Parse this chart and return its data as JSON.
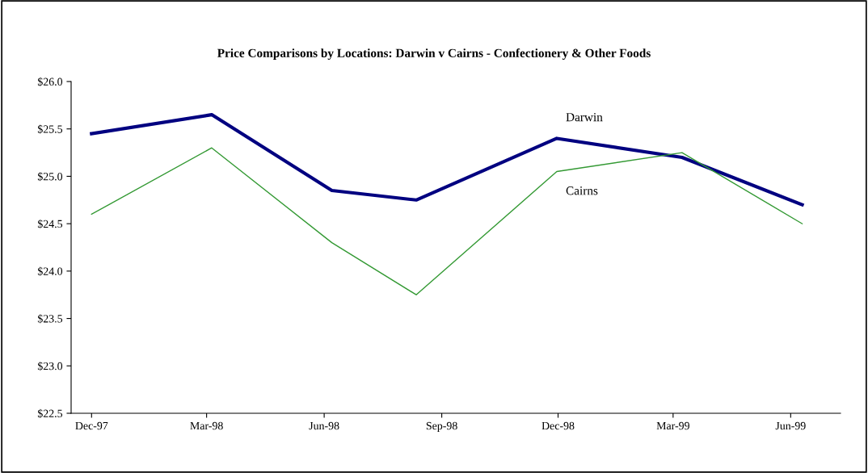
{
  "chart_data": {
    "type": "line",
    "title": "Price Comparisons by Locations: Darwin v Cairns - Confectionery & Other Foods",
    "x": [
      "1997-12-01",
      "1998-03-05",
      "1998-06-07",
      "1998-08-12",
      "1998-11-30",
      "1999-03-08",
      "1999-06-10"
    ],
    "series": [
      {
        "name": "Darwin",
        "color": "#000080",
        "values": [
          25.45,
          25.65,
          24.85,
          24.75,
          25.4,
          25.2,
          24.7
        ]
      },
      {
        "name": "Cairns",
        "color": "#339933",
        "values": [
          24.6,
          25.3,
          24.3,
          23.75,
          25.05,
          25.25,
          24.5
        ]
      }
    ],
    "xlim": [
      "1997-11-15",
      "1999-07-10"
    ],
    "xticks": [
      {
        "value": "1997-12-01",
        "label": "Dec-97"
      },
      {
        "value": "1998-03-01",
        "label": "Mar-98"
      },
      {
        "value": "1998-06-01",
        "label": "Jun-98"
      },
      {
        "value": "1998-09-01",
        "label": "Sep-98"
      },
      {
        "value": "1998-12-01",
        "label": "Dec-98"
      },
      {
        "value": "1999-03-01",
        "label": "Mar-99"
      },
      {
        "value": "1999-06-01",
        "label": "Jun-99"
      }
    ],
    "ylim": [
      22.5,
      26.0
    ],
    "yticks": [
      {
        "value": 22.5,
        "label": "$22.5"
      },
      {
        "value": 23.0,
        "label": "$23.0"
      },
      {
        "value": 23.5,
        "label": "$23.5"
      },
      {
        "value": 24.0,
        "label": "$24.0"
      },
      {
        "value": 24.5,
        "label": "$24.5"
      },
      {
        "value": 25.0,
        "label": "$25.0"
      },
      {
        "value": 25.5,
        "label": "$25.5"
      },
      {
        "value": 26.0,
        "label": "$26.0"
      }
    ],
    "grid": false,
    "legend": false,
    "marker": "none",
    "line_style": "solid"
  }
}
